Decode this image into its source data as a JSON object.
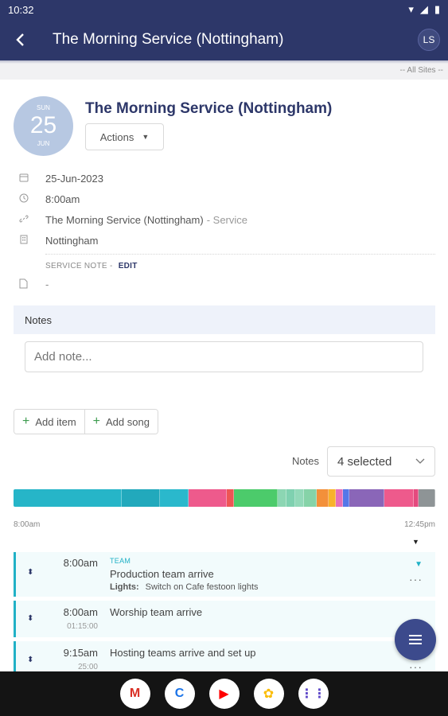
{
  "status_bar": {
    "time": "10:32"
  },
  "app_bar": {
    "back_icon": "arrow-left-icon",
    "title": "The Morning Service (Nottingham)",
    "avatar_initials": "LS"
  },
  "sites_bar": {
    "label": "-- All Sites --"
  },
  "service": {
    "date_badge": {
      "dow": "SUN",
      "day": "25",
      "month": "JUN"
    },
    "title": "The Morning Service (Nottingham)",
    "actions_label": "Actions",
    "date": "25-Jun-2023",
    "time": "8:00am",
    "link_name": "The Morning Service (Nottingham)",
    "link_suffix": "- Service",
    "location": "Nottingham",
    "service_note_label": "SERVICE NOTE -",
    "service_note_edit": "EDIT",
    "service_note_value": "-"
  },
  "notes": {
    "header": "Notes",
    "placeholder": "Add note..."
  },
  "buttons": {
    "add_item": "Add item",
    "add_song": "Add song"
  },
  "filter": {
    "label": "Notes",
    "selected": "4 selected"
  },
  "timeline": {
    "start": "8:00am",
    "end": "12:45pm",
    "segments": [
      {
        "weight": 138,
        "color": "#26b5c8"
      },
      {
        "weight": 48,
        "color": "#22a9bc"
      },
      {
        "weight": 36,
        "color": "#2ab8cc"
      },
      {
        "weight": 48,
        "color": "#ee5a8c"
      },
      {
        "weight": 8,
        "color": "#ee5555"
      },
      {
        "weight": 56,
        "color": "#4ccb6b"
      },
      {
        "weight": 10,
        "color": "#8cd6b3"
      },
      {
        "weight": 10,
        "color": "#7fd1b0"
      },
      {
        "weight": 10,
        "color": "#93d9b9"
      },
      {
        "weight": 16,
        "color": "#86d3a8"
      },
      {
        "weight": 14,
        "color": "#f3903a"
      },
      {
        "weight": 8,
        "color": "#f8b22a"
      },
      {
        "weight": 8,
        "color": "#e66fb9"
      },
      {
        "weight": 8,
        "color": "#5577e8"
      },
      {
        "weight": 44,
        "color": "#8a66b8"
      },
      {
        "weight": 36,
        "color": "#ee5a8c"
      },
      {
        "weight": 6,
        "color": "#e44a7e"
      },
      {
        "weight": 20,
        "color": "#8e9496"
      }
    ]
  },
  "items": [
    {
      "time": "8:00am",
      "duration": "",
      "tag": "TEAM",
      "title": "Production team arrive",
      "sub_label": "Lights:",
      "sub_value": "Switch on Cafe festoon lights"
    },
    {
      "time": "8:00am",
      "duration": "01:15:00",
      "tag": "",
      "title": "Worship team arrive",
      "sub_label": "",
      "sub_value": ""
    },
    {
      "time": "9:15am",
      "duration": "25:00",
      "tag": "",
      "title": "Hosting teams arrive and set up",
      "sub_label": "",
      "sub_value": ""
    }
  ],
  "nav_apps": [
    "M",
    "C",
    "▶",
    "✿",
    "⋮⋮"
  ]
}
